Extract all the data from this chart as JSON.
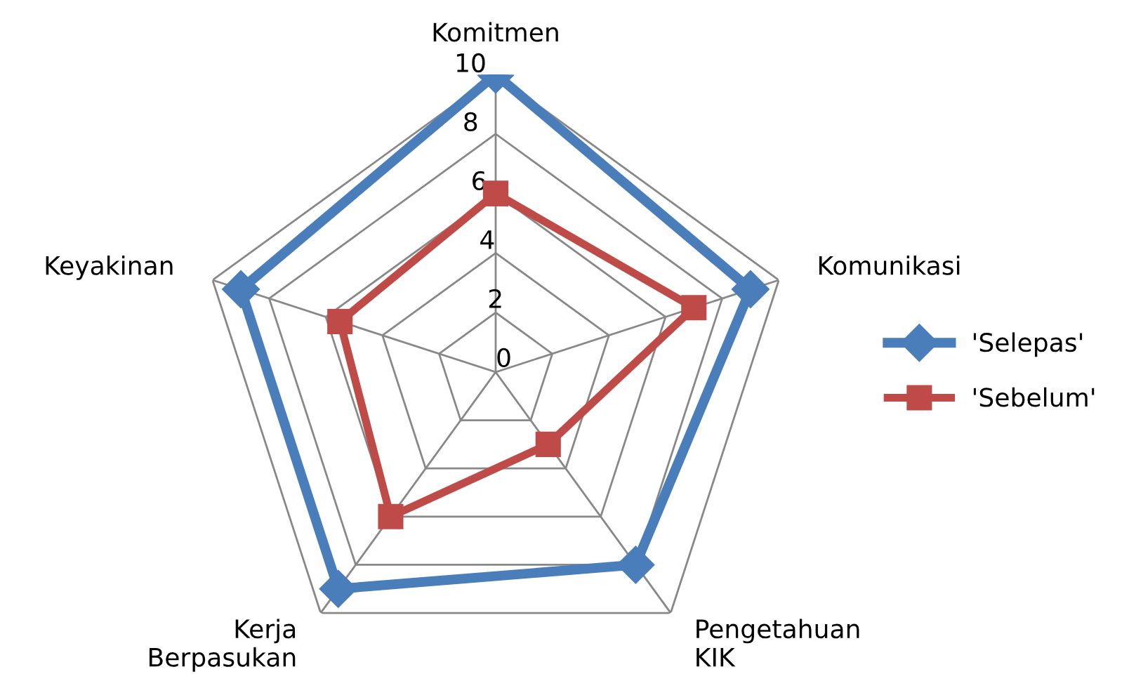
{
  "chart_data": {
    "type": "radar",
    "categories": [
      "Komitmen",
      "Komunikasi",
      "Pengetahuan\nKIK",
      "Kerja\nBerpasukan",
      "Keyakinan"
    ],
    "series": [
      {
        "name": "'Selepas'",
        "color": "#4a7ebb",
        "values": [
          10,
          9,
          8,
          9,
          9
        ],
        "marker": "diamond"
      },
      {
        "name": "'Sebelum'",
        "color": "#be4b48",
        "values": [
          6,
          7,
          3,
          6,
          5.5
        ],
        "marker": "square"
      }
    ],
    "ylim": [
      0,
      10
    ],
    "yticks": [
      0,
      2,
      4,
      6,
      8,
      10
    ],
    "grid": true,
    "legend": "right"
  }
}
